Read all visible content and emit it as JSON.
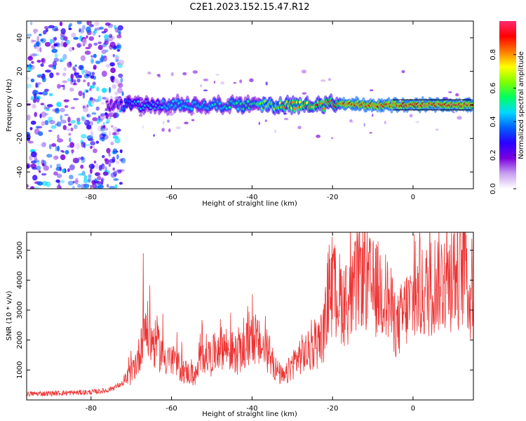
{
  "title": "C2E1.2023.152.15.47.R12",
  "chart_data": [
    {
      "type": "heatmap",
      "title": "",
      "xlabel": "Height of straight line (km)",
      "ylabel": "Frequency (Hz)",
      "xlim": [
        -96,
        15
      ],
      "ylim": [
        -50,
        50
      ],
      "xticks": [
        -80,
        -60,
        -40,
        -20,
        0
      ],
      "yticks": [
        -40,
        -20,
        0,
        20,
        40
      ],
      "colorbar": {
        "label": "Normalized spectral amplitude",
        "range": [
          0,
          1
        ],
        "ticks": [
          "0.0",
          "0.2",
          "0.4",
          "0.6",
          "0.8"
        ],
        "colors": [
          "#ffffff",
          "#c8a0f0",
          "#7a00e0",
          "#2a00ff",
          "#0060ff",
          "#00d8ff",
          "#00ff60",
          "#80ff00",
          "#ffff00",
          "#ff7a00",
          "#ff0000",
          "#ff2a70"
        ]
      },
      "main_band": {
        "description_free": true,
        "frequency_hz": 0,
        "x_start_km": -76,
        "x_end_km": 15,
        "amplitude_trend": [
          {
            "x": -76,
            "amplitude": 0.2
          },
          {
            "x": -70,
            "amplitude": 0.45
          },
          {
            "x": -60,
            "amplitude": 0.5
          },
          {
            "x": -50,
            "amplitude": 0.5
          },
          {
            "x": -40,
            "amplitude": 0.6
          },
          {
            "x": -30,
            "amplitude": 0.85
          },
          {
            "x": -20,
            "amplitude": 0.9
          },
          {
            "x": -10,
            "amplitude": 0.95
          },
          {
            "x": 0,
            "amplitude": 0.95
          },
          {
            "x": 15,
            "amplitude": 1.0
          }
        ]
      },
      "noise_region_km": [
        -96,
        -74
      ]
    },
    {
      "type": "line",
      "title": "",
      "xlabel": "Height of straight line (km)",
      "ylabel": "SNR (10 * v/v)",
      "xlim": [
        -96,
        15
      ],
      "ylim": [
        0,
        5600
      ],
      "xticks": [
        -80,
        -60,
        -40,
        -20,
        0
      ],
      "yticks": [
        1000,
        2000,
        3000,
        4000,
        5000
      ],
      "series": [
        {
          "color": "#ee3333",
          "x": [
            -96,
            -90,
            -85,
            -80,
            -76,
            -72,
            -70,
            -68,
            -67,
            -65,
            -62,
            -60,
            -58,
            -56,
            -54,
            -52,
            -50,
            -48,
            -46,
            -44,
            -42,
            -40,
            -38,
            -36,
            -34,
            -32,
            -30,
            -28,
            -26,
            -24,
            -22,
            -21,
            -19,
            -17,
            -15,
            -13,
            -12,
            -10,
            -8,
            -6,
            -4,
            -2,
            0,
            2,
            4,
            6,
            8,
            10,
            12,
            13,
            14,
            15
          ],
          "y": [
            200,
            220,
            240,
            260,
            320,
            550,
            900,
            1500,
            2600,
            2000,
            1500,
            1300,
            1100,
            900,
            800,
            1600,
            1400,
            1900,
            1700,
            1500,
            1600,
            2200,
            1800,
            1600,
            1000,
            700,
            1200,
            1500,
            1600,
            1800,
            2300,
            3700,
            3600,
            3200,
            3400,
            4400,
            4000,
            3700,
            3700,
            3300,
            2400,
            3000,
            3300,
            3500,
            3700,
            4000,
            4000,
            4100,
            4200,
            4800,
            3100,
            4500
          ]
        }
      ]
    }
  ]
}
